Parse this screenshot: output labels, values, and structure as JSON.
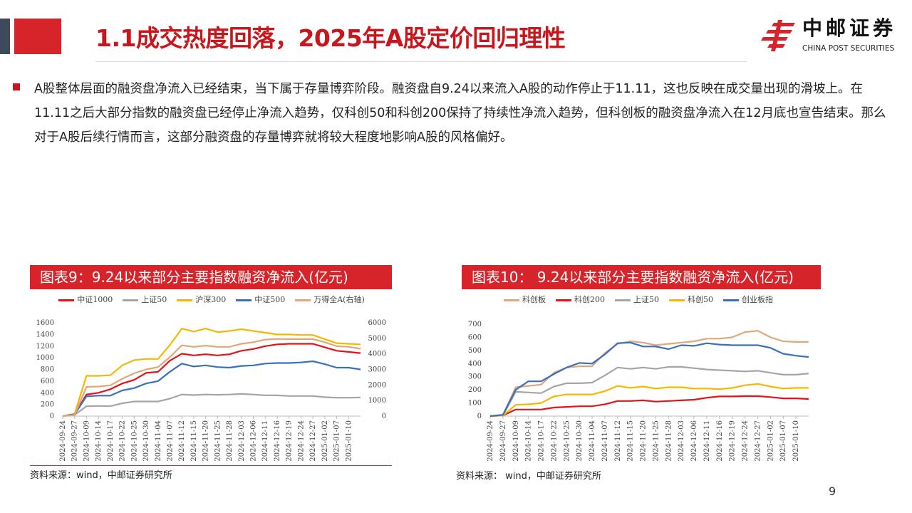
{
  "header": {
    "title": "1.1成交热度回落，2025年A股定价回归理性",
    "logo_cn": "中邮证券",
    "logo_en": "CHINA POST SECURITIES"
  },
  "body": {
    "text": "A股整体层面的融资盘净流入已经结束，当下属于存量博弈阶段。融资盘自9.24以来流入A股的动作停止于11.11，这也反映在成交量出现的滑坡上。在11.11之后大部分指数的融资盘已经停止净流入趋势，仅科创50和科创200保持了持续性净流入趋势，但科创板的融资盘净流入在12月底也宣告结束。那么对于A股后续行情而言，这部分融资盘的存量博弈就将较大程度地影响A股的风格偏好。"
  },
  "page_number": "9",
  "colors": {
    "accent": "#d7242a"
  },
  "chart_data": [
    {
      "type": "line",
      "title": "图表9：9.24以来部分主要指数融资净流入(亿元)",
      "source": "资料来源：wind，中邮证券研究所",
      "x": [
        "2024-09-24",
        "2024-09-27",
        "2024-10-09",
        "2024-10-14",
        "2024-10-17",
        "2024-10-22",
        "2024-10-25",
        "2024-10-30",
        "2024-11-04",
        "2024-11-07",
        "2024-11-12",
        "2024-11-15",
        "2024-11-20",
        "2024-11-25",
        "2024-11-28",
        "2024-12-03",
        "2024-12-06",
        "2024-12-11",
        "2024-12-16",
        "2024-12-19",
        "2024-12-24",
        "2024-12-27",
        "2025-01-02",
        "2025-01-07",
        "2025-01-10",
        ""
      ],
      "ylim": [
        0,
        1600
      ],
      "yticks": [
        0,
        200,
        400,
        600,
        800,
        1000,
        1200,
        1400,
        1600
      ],
      "y2lim": [
        0,
        6000
      ],
      "y2ticks": [
        0,
        1000,
        2000,
        3000,
        4000,
        5000,
        6000
      ],
      "legend_position": "top",
      "series": [
        {
          "name": "中证1000",
          "color": "#e3121b",
          "axis": "left",
          "values": [
            0,
            30,
            370,
            400,
            460,
            560,
            620,
            740,
            760,
            950,
            1070,
            1040,
            1060,
            1040,
            1060,
            1120,
            1150,
            1200,
            1230,
            1240,
            1240,
            1240,
            1180,
            1120,
            1100,
            1080
          ]
        },
        {
          "name": "上证50",
          "color": "#a5a5a5",
          "axis": "left",
          "values": [
            0,
            20,
            170,
            175,
            170,
            220,
            250,
            250,
            250,
            300,
            370,
            360,
            370,
            365,
            370,
            380,
            370,
            355,
            355,
            345,
            345,
            345,
            325,
            315,
            315,
            320
          ]
        },
        {
          "name": "沪深300",
          "color": "#f5b800",
          "axis": "left",
          "values": [
            0,
            40,
            690,
            690,
            700,
            870,
            960,
            980,
            980,
            1220,
            1500,
            1450,
            1500,
            1440,
            1460,
            1490,
            1460,
            1430,
            1400,
            1400,
            1390,
            1390,
            1320,
            1250,
            1240,
            1230
          ]
        },
        {
          "name": "中证500",
          "color": "#3a6fc0",
          "axis": "left",
          "values": [
            0,
            30,
            340,
            350,
            350,
            440,
            480,
            560,
            600,
            760,
            900,
            850,
            870,
            840,
            830,
            860,
            870,
            900,
            910,
            910,
            920,
            940,
            890,
            830,
            830,
            800
          ]
        },
        {
          "name": "万得全A(右轴)",
          "color": "#e0a878",
          "axis": "right",
          "values": [
            0,
            80,
            1880,
            1900,
            1980,
            2400,
            2750,
            3000,
            3150,
            3800,
            4550,
            4450,
            4530,
            4450,
            4450,
            4650,
            4750,
            4920,
            4960,
            4950,
            4950,
            4950,
            4750,
            4500,
            4450,
            4330
          ]
        }
      ]
    },
    {
      "type": "line",
      "title": "图表10： 9.24以来部分主要指数融资净流入(亿元)",
      "source": "资料来源： wind，中邮证券研究所",
      "x": [
        "2024-09-24",
        "2024-09-27",
        "2024-10-09",
        "2024-10-14",
        "2024-10-17",
        "2024-10-22",
        "2024-10-25",
        "2024-10-30",
        "2024-11-04",
        "2024-11-07",
        "2024-11-12",
        "2024-11-15",
        "2024-11-20",
        "2024-11-25",
        "2024-11-28",
        "2024-12-03",
        "2024-12-06",
        "2024-12-11",
        "2024-12-16",
        "2024-12-19",
        "2024-12-24",
        "2024-12-27",
        "2025-01-02",
        "2025-01-07",
        "2025-01-10",
        ""
      ],
      "ylim": [
        0,
        700
      ],
      "yticks": [
        0,
        100,
        200,
        300,
        400,
        500,
        600,
        700
      ],
      "legend_position": "top",
      "series": [
        {
          "name": "科创板",
          "color": "#e0a878",
          "axis": "left",
          "values": [
            0,
            10,
            220,
            230,
            240,
            330,
            370,
            380,
            380,
            480,
            550,
            570,
            560,
            540,
            550,
            560,
            570,
            590,
            590,
            600,
            640,
            650,
            600,
            570,
            565,
            565
          ]
        },
        {
          "name": "科创200",
          "color": "#e3121b",
          "axis": "left",
          "values": [
            0,
            5,
            50,
            50,
            50,
            65,
            70,
            75,
            75,
            90,
            115,
            115,
            120,
            110,
            115,
            120,
            125,
            140,
            150,
            150,
            152,
            152,
            145,
            135,
            135,
            130
          ]
        },
        {
          "name": "上证50",
          "color": "#a5a5a5",
          "axis": "left",
          "values": [
            0,
            5,
            185,
            180,
            175,
            225,
            250,
            250,
            255,
            310,
            370,
            360,
            370,
            360,
            375,
            375,
            365,
            355,
            350,
            345,
            340,
            345,
            330,
            315,
            315,
            325
          ]
        },
        {
          "name": "科创50",
          "color": "#f5b800",
          "axis": "left",
          "values": [
            0,
            5,
            85,
            90,
            100,
            150,
            165,
            165,
            165,
            190,
            230,
            215,
            225,
            210,
            220,
            220,
            210,
            210,
            205,
            215,
            235,
            245,
            225,
            210,
            215,
            215
          ]
        },
        {
          "name": "创业板指",
          "color": "#3a6fc0",
          "axis": "left",
          "values": [
            0,
            10,
            200,
            265,
            265,
            320,
            370,
            405,
            400,
            470,
            555,
            560,
            530,
            530,
            510,
            540,
            535,
            555,
            545,
            540,
            540,
            540,
            520,
            475,
            460,
            450
          ]
        }
      ]
    }
  ]
}
